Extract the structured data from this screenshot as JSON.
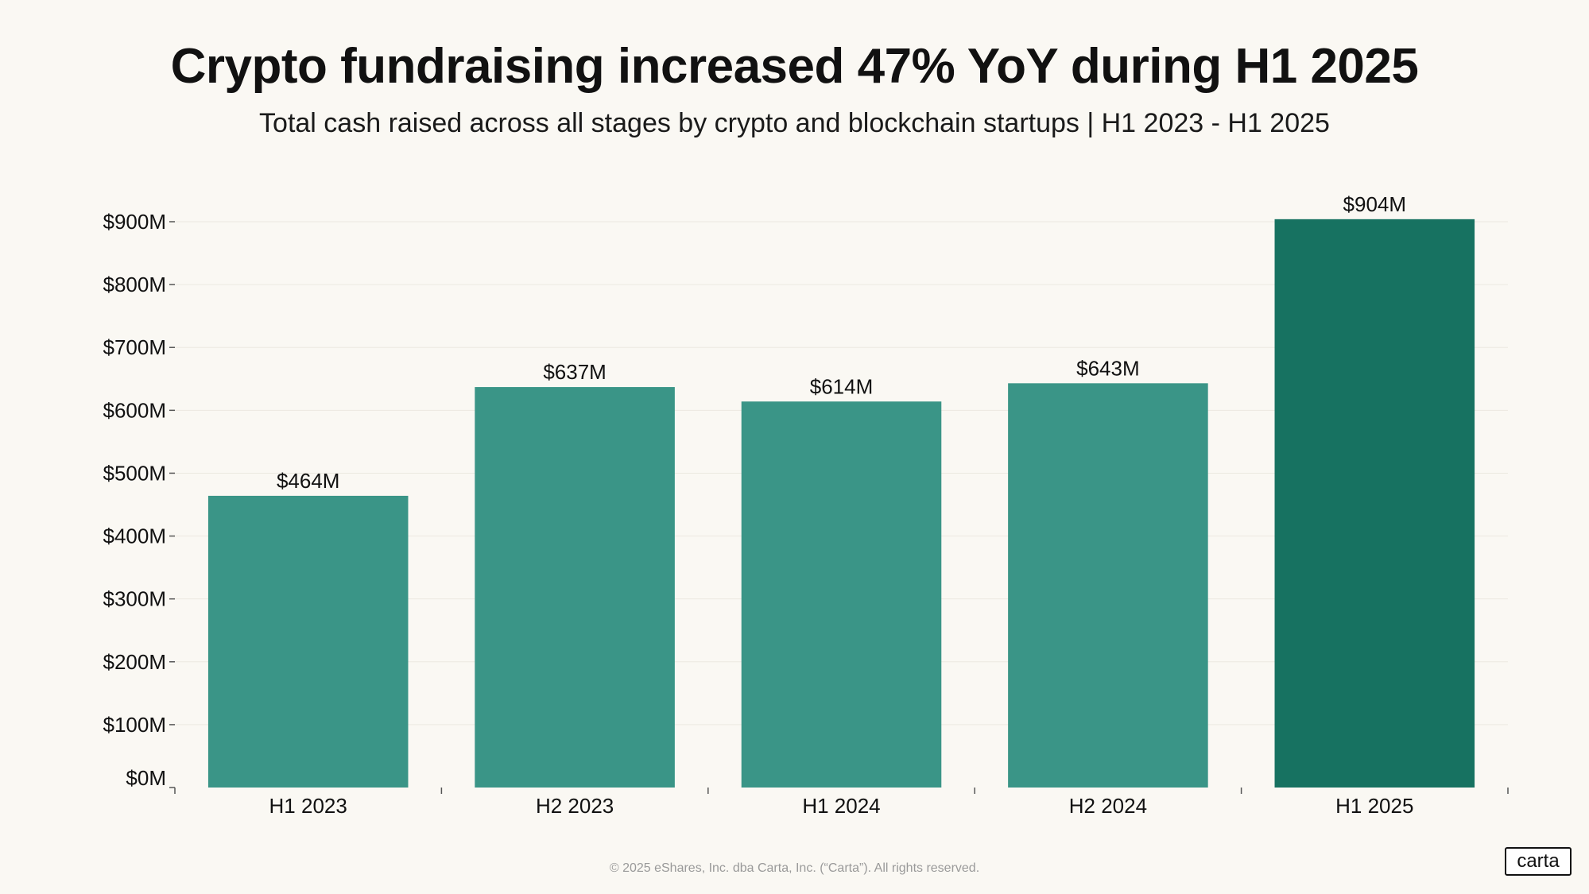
{
  "title": "Crypto fundraising increased 47% YoY during H1 2025",
  "subtitle": "Total cash raised across all stages by crypto and blockchain startups | H1 2023 - H1 2025",
  "footer": "© 2025 eShares, Inc. dba Carta, Inc. (“Carta”). All rights reserved.",
  "logo": "carta",
  "colors": {
    "bar": "#3a9587",
    "bar_highlight": "#177261",
    "background": "#faf8f3",
    "grid": "#ece9e1"
  },
  "chart_data": {
    "type": "bar",
    "title": "Crypto fundraising increased 47% YoY during H1 2025",
    "subtitle": "Total cash raised across all stages by crypto and blockchain startups | H1 2023 - H1 2025",
    "xlabel": "",
    "ylabel": "",
    "categories": [
      "H1 2023",
      "H2 2023",
      "H1 2024",
      "H2 2024",
      "H1 2025"
    ],
    "values": [
      464,
      637,
      614,
      643,
      904
    ],
    "data_labels": [
      "$464M",
      "$637M",
      "$614M",
      "$643M",
      "$904M"
    ],
    "highlighted_category": "H1 2025",
    "ylim": [
      0,
      900
    ],
    "yticks": [
      0,
      100,
      200,
      300,
      400,
      500,
      600,
      700,
      800,
      900
    ],
    "ytick_labels": [
      "$0M",
      "$100M",
      "$200M",
      "$300M",
      "$400M",
      "$500M",
      "$600M",
      "$700M",
      "$800M",
      "$900M"
    ],
    "grid": true,
    "legend": "none"
  }
}
